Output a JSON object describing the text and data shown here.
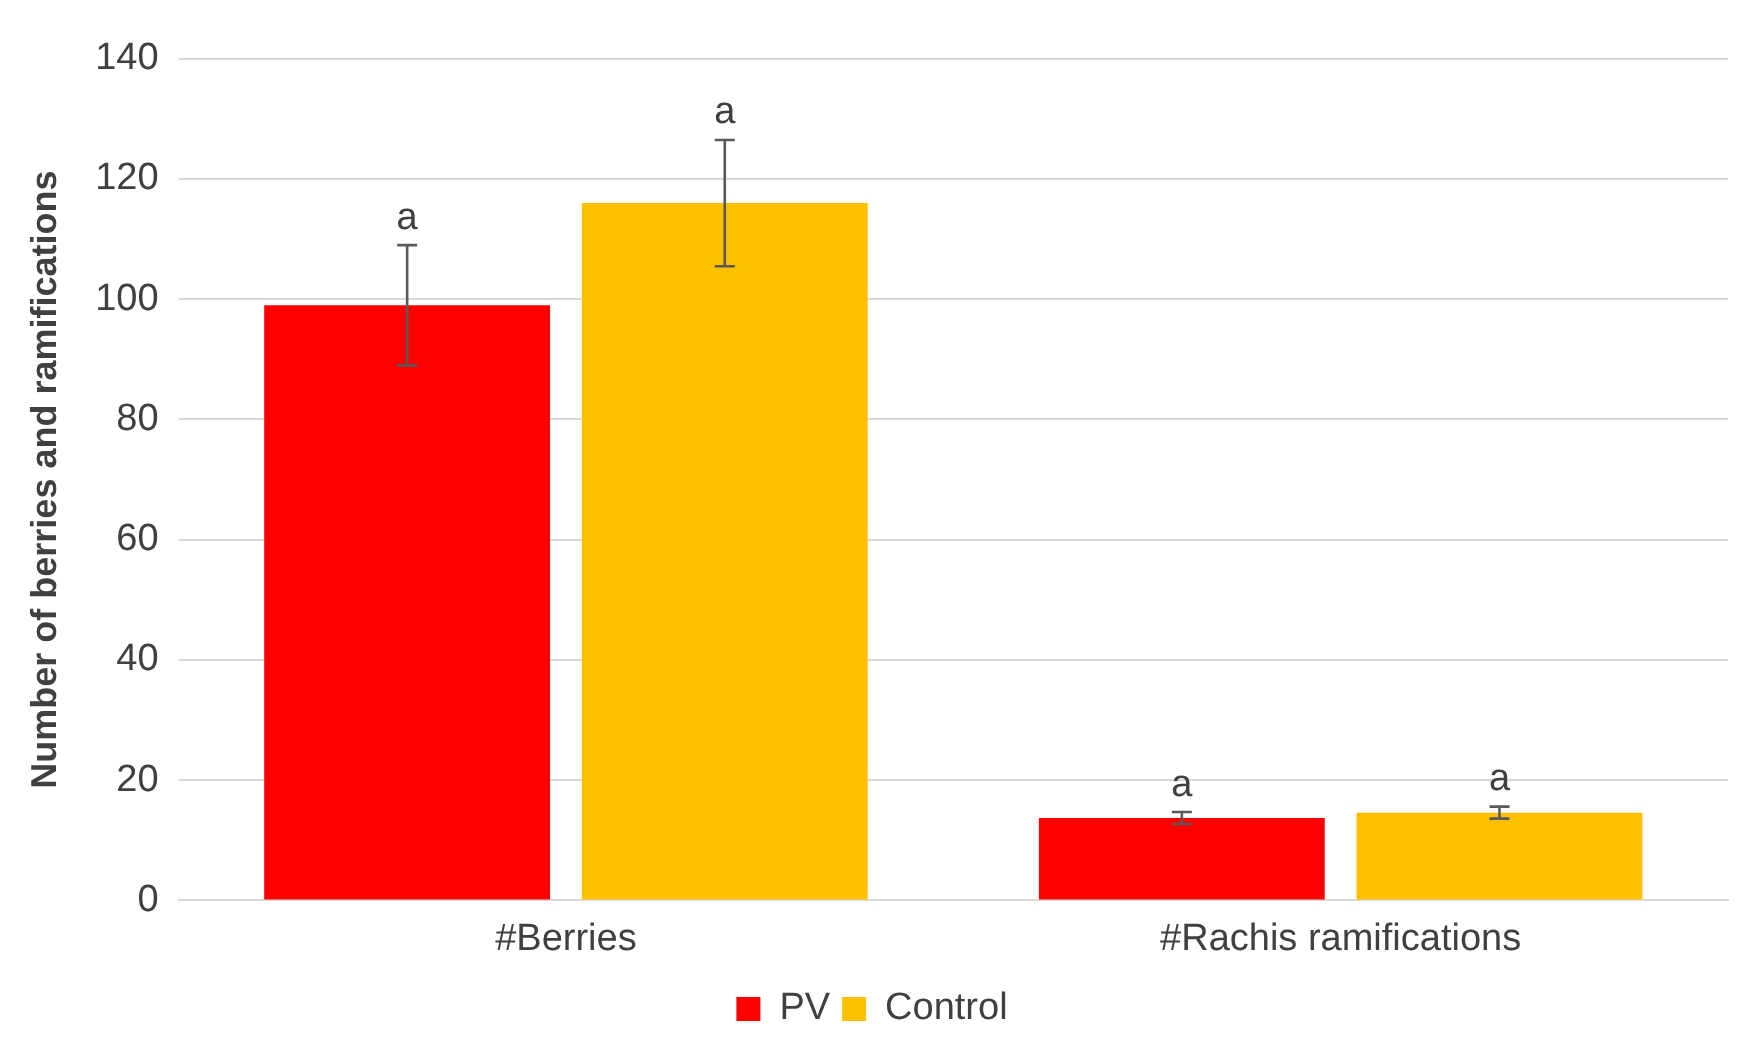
{
  "chart_data": {
    "type": "bar",
    "ylabel": "Number of berries and ramifications",
    "categories": [
      "#Berries",
      "#Rachis ramifications"
    ],
    "series": [
      {
        "name": "PV",
        "color": "#ff0000",
        "values": [
          99,
          13.7
        ],
        "errors": [
          10,
          1
        ],
        "value_labels": [
          "a",
          "a"
        ]
      },
      {
        "name": "Control",
        "color": "#ffc000",
        "values": [
          116,
          14.6
        ],
        "errors": [
          10.5,
          1
        ],
        "value_labels": [
          "a",
          "a"
        ]
      }
    ],
    "ylim": [
      0,
      140
    ],
    "yticks": [
      0,
      20,
      40,
      60,
      80,
      100,
      120,
      140
    ],
    "grid": "y",
    "legend": "bottom"
  }
}
